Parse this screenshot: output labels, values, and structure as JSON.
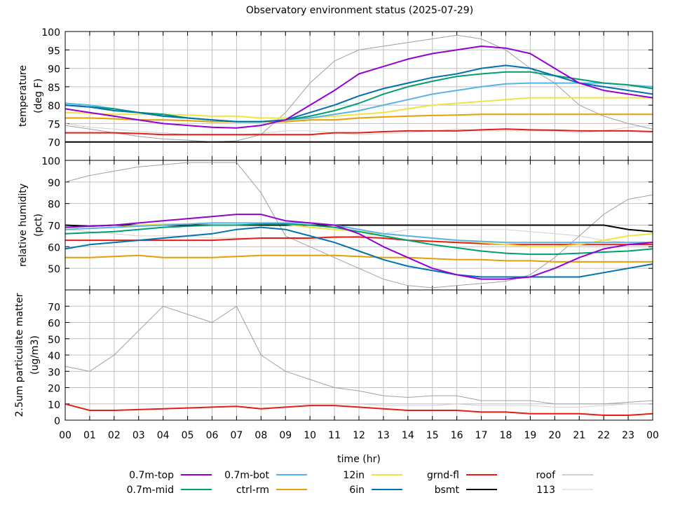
{
  "chart_data": {
    "type": "line",
    "title": "Observatory environment status (2025-07-29)",
    "xlabel": "time (hr)",
    "x_tick_labels": [
      "00",
      "01",
      "02",
      "03",
      "04",
      "05",
      "06",
      "07",
      "08",
      "09",
      "10",
      "11",
      "12",
      "13",
      "14",
      "15",
      "16",
      "17",
      "18",
      "19",
      "20",
      "21",
      "22",
      "23",
      "00"
    ],
    "x": [
      0,
      1,
      2,
      3,
      4,
      5,
      6,
      7,
      8,
      9,
      10,
      11,
      12,
      13,
      14,
      15,
      16,
      17,
      18,
      19,
      20,
      21,
      22,
      23,
      24
    ],
    "xlim": [
      0,
      24
    ],
    "grid": true,
    "legend_placement": "bottom",
    "series_styles": [
      {
        "name": "0.7m-top",
        "color": "#9400d3",
        "width": 2
      },
      {
        "name": "0.7m-mid",
        "color": "#009e73",
        "width": 2
      },
      {
        "name": "0.7m-bot",
        "color": "#56b4e9",
        "width": 2
      },
      {
        "name": "ctrl-rm",
        "color": "#e69f00",
        "width": 2
      },
      {
        "name": "12in",
        "color": "#f0e442",
        "width": 2
      },
      {
        "name": "6in",
        "color": "#0072b2",
        "width": 2
      },
      {
        "name": "grnd-fl",
        "color": "#e51e10",
        "width": 2
      },
      {
        "name": "bsmt",
        "color": "#000000",
        "width": 2
      },
      {
        "name": "roof",
        "color": "#a0a0a0",
        "width": 1
      },
      {
        "name": "113",
        "color": "#d0d0d0",
        "width": 1
      }
    ],
    "panels": [
      {
        "ylabel": [
          "temperature",
          "(deg F)"
        ],
        "ylim": [
          65,
          100
        ],
        "yticks": [
          65,
          70,
          75,
          80,
          85,
          90,
          95,
          100
        ],
        "ytick_labels": [
          "",
          "70",
          "75",
          "80",
          "85",
          "90",
          "95",
          "100"
        ],
        "series": [
          {
            "name": "0.7m-top",
            "values": [
              79,
              78,
              77,
              76,
              75,
              74.5,
              74,
              73.8,
              74.5,
              76,
              80,
              84,
              88.5,
              90.5,
              92.5,
              94,
              95,
              96,
              95.5,
              94,
              90,
              86,
              84,
              83,
              82
            ]
          },
          {
            "name": "0.7m-mid",
            "values": [
              80,
              79.5,
              79,
              78,
              77.5,
              76.5,
              76,
              75.5,
              75.5,
              76,
              77,
              78.5,
              80.5,
              83,
              85,
              86.5,
              87.8,
              88.5,
              89,
              89,
              88,
              87,
              86,
              85.5,
              84.5
            ]
          },
          {
            "name": "0.7m-bot",
            "values": [
              80.5,
              80,
              79,
              78,
              77.5,
              76.5,
              76,
              75.5,
              75.5,
              76,
              76.5,
              77.5,
              78.5,
              80,
              81.5,
              83,
              84,
              85,
              85.8,
              86,
              86,
              86,
              86,
              85.5,
              85
            ]
          },
          {
            "name": "ctrl-rm",
            "values": [
              76.5,
              76.5,
              76.3,
              76,
              76,
              75.8,
              75.5,
              75.5,
              75.5,
              75.5,
              76,
              76,
              76.5,
              76.8,
              77,
              77.2,
              77.3,
              77.5,
              77.5,
              77.5,
              77.5,
              77.5,
              77.5,
              77.5,
              77.5
            ]
          },
          {
            "name": "12in",
            "values": [
              78,
              77.8,
              77.5,
              77.5,
              77.5,
              77.3,
              77,
              77,
              76.5,
              76.5,
              76.5,
              77,
              77.5,
              78,
              79,
              80,
              80.5,
              81,
              81.5,
              82,
              82,
              82,
              82,
              82,
              82
            ]
          },
          {
            "name": "6in",
            "values": [
              80,
              79.5,
              78.5,
              78,
              77,
              76.5,
              76,
              75.5,
              75.5,
              76,
              78,
              80,
              82.5,
              84.5,
              86,
              87.5,
              88.5,
              90,
              90.8,
              90,
              88,
              86,
              85,
              84,
              83
            ]
          },
          {
            "name": "grnd-fl",
            "values": [
              72.5,
              72.5,
              72.5,
              72.3,
              72,
              72,
              72,
              72,
              72,
              72,
              72,
              72.5,
              72.5,
              72.8,
              73,
              73,
              73,
              73.3,
              73.5,
              73.3,
              73.2,
              73,
              73,
              73,
              72.8
            ]
          },
          {
            "name": "bsmt",
            "values": [
              70,
              70,
              70,
              70,
              70,
              70,
              70,
              70,
              70,
              70,
              70,
              70,
              70,
              70,
              70,
              70,
              70,
              70,
              70,
              70,
              70,
              70,
              70,
              70,
              70
            ]
          },
          {
            "name": "roof",
            "values": [
              74.5,
              73.5,
              72.5,
              71.5,
              70.8,
              70.5,
              70,
              70.3,
              72,
              78,
              86,
              92,
              95,
              96,
              97,
              98,
              99,
              98,
              95,
              90,
              86,
              80,
              77,
              75,
              73.5
            ]
          },
          {
            "name": "113",
            "values": [
              75,
              74,
              73.5,
              72.8,
              72.5,
              72,
              72,
              72,
              72.3,
              73,
              73,
              72.5,
              72,
              72.3,
              72.5,
              73,
              73.5,
              73,
              73,
              73,
              73,
              72.5,
              73,
              74,
              74.5
            ]
          }
        ]
      },
      {
        "ylabel": [
          "relative humidity",
          "(pct)"
        ],
        "ylim": [
          40,
          100
        ],
        "yticks": [
          40,
          50,
          60,
          70,
          80,
          90,
          100
        ],
        "ytick_labels": [
          "",
          "50",
          "60",
          "70",
          "80",
          "90",
          "100"
        ],
        "series": [
          {
            "name": "0.7m-top",
            "values": [
              69,
              69.5,
              70,
              71,
              72,
              73,
              74,
              75,
              75,
              72,
              71,
              70,
              66,
              60,
              55,
              50,
              47,
              45,
              45,
              46,
              50,
              55,
              59,
              61,
              62
            ]
          },
          {
            "name": "0.7m-mid",
            "values": [
              66,
              66.5,
              67,
              68,
              69,
              69.5,
              70,
              70,
              70.5,
              70.5,
              70,
              69,
              67,
              65,
              63,
              61,
              59.5,
              58,
              57,
              56.5,
              56.5,
              57,
              57.5,
              58,
              59
            ]
          },
          {
            "name": "0.7m-bot",
            "values": [
              68,
              68.5,
              69,
              69.5,
              70,
              70.5,
              71,
              71,
              71,
              71,
              71,
              70,
              68,
              66,
              65,
              64,
              63,
              62.5,
              62,
              62,
              62,
              62,
              62,
              62,
              62
            ]
          },
          {
            "name": "ctrl-rm",
            "values": [
              55,
              55,
              55.5,
              56,
              55,
              55,
              55,
              55.5,
              56,
              56,
              56,
              56,
              55.5,
              55,
              55,
              54.5,
              54,
              54,
              53.5,
              53.5,
              53,
              53,
              53,
              53,
              53
            ]
          },
          {
            "name": "12in",
            "values": [
              68,
              68.5,
              69,
              70,
              70.5,
              70.5,
              71,
              71,
              71,
              70.5,
              69,
              68,
              67,
              66,
              65,
              64,
              63,
              62,
              61,
              60,
              60,
              61,
              63,
              65,
              66
            ]
          },
          {
            "name": "6in",
            "values": [
              59,
              61,
              62,
              63,
              64,
              65,
              66,
              68,
              69,
              68,
              65,
              62,
              58,
              54,
              51,
              49,
              47,
              46,
              46,
              46,
              46,
              46,
              48,
              50,
              52
            ]
          },
          {
            "name": "grnd-fl",
            "values": [
              63,
              63,
              63,
              63,
              63,
              63,
              63,
              63.5,
              64,
              64,
              64,
              64.5,
              64.5,
              64,
              63,
              62.5,
              62,
              61.5,
              61,
              61,
              61,
              61,
              61,
              61,
              61
            ]
          },
          {
            "name": "bsmt",
            "values": [
              70,
              69.5,
              70,
              70,
              70,
              70,
              70,
              70,
              70,
              70,
              70,
              70,
              70,
              70,
              70,
              70,
              70,
              70,
              70,
              70,
              70,
              70,
              70,
              68,
              67
            ]
          },
          {
            "name": "roof",
            "values": [
              90,
              93,
              95,
              97,
              98,
              99,
              99,
              99,
              85,
              65,
              60,
              55,
              50,
              45,
              42,
              41,
              42,
              43,
              44,
              47,
              55,
              65,
              75,
              82,
              84
            ]
          },
          {
            "name": "113",
            "values": [
              68,
              67,
              66,
              65,
              65,
              65,
              64,
              64,
              64,
              64,
              63,
              64,
              65,
              66,
              68,
              68,
              68,
              68,
              68,
              67,
              66,
              65,
              63,
              62,
              62
            ]
          }
        ]
      },
      {
        "ylabel": [
          "2.5um particulate matter",
          "(ug/m3)"
        ],
        "ylim": [
          0,
          80
        ],
        "yticks": [
          0,
          10,
          20,
          30,
          40,
          50,
          60,
          70,
          80
        ],
        "ytick_labels": [
          "0",
          "10",
          "20",
          "30",
          "40",
          "50",
          "60",
          "70",
          ""
        ],
        "series": [
          {
            "name": "roof",
            "values": [
              33,
              30,
              40,
              55,
              70,
              65,
              60,
              70,
              40,
              30,
              25,
              20,
              18,
              15,
              14,
              15,
              15,
              12,
              12,
              12,
              10,
              10,
              10,
              11,
              12
            ]
          },
          {
            "name": "113",
            "values": [
              null,
              null,
              null,
              null,
              null,
              null,
              null,
              null,
              null,
              null,
              null,
              10,
              10,
              9,
              9,
              9,
              10,
              9,
              9,
              9,
              8,
              8,
              9,
              10,
              10
            ]
          },
          {
            "name": "grnd-fl",
            "values": [
              10,
              6,
              6,
              6.5,
              7,
              7.5,
              8,
              8.5,
              7,
              8,
              9,
              9,
              8,
              7,
              6,
              6,
              6,
              5,
              5,
              4,
              4,
              4,
              3,
              3,
              4
            ]
          }
        ]
      }
    ],
    "legend": [
      "0.7m-top",
      "0.7m-bot",
      "12in",
      "grnd-fl",
      "roof",
      "0.7m-mid",
      "ctrl-rm",
      "6in",
      "bsmt",
      "113"
    ]
  }
}
